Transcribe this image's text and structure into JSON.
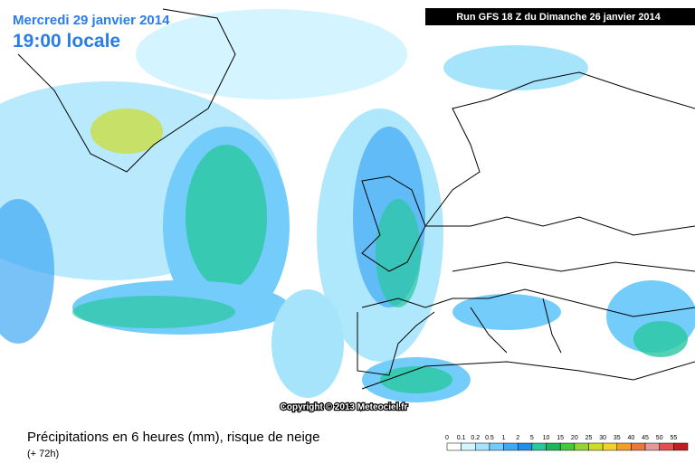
{
  "header": {
    "date": "Mercredi 29 janvier 2014",
    "time": "19:00 locale",
    "run": "Run GFS 18 Z du Dimanche 26 janvier 2014"
  },
  "copyright": "Copyright © 2013 Meteociel.fr",
  "caption": {
    "title": "Précipitations en 6 heures (mm), risque de neige",
    "lead": "(+ 72h)"
  },
  "legend": {
    "items": [
      {
        "label": "0",
        "color": "#ffffff"
      },
      {
        "label": "0.1",
        "color": "#d4f4ff"
      },
      {
        "label": "0.2",
        "color": "#a6e4fc"
      },
      {
        "label": "0.5",
        "color": "#74ccfa"
      },
      {
        "label": "1",
        "color": "#40a8f4"
      },
      {
        "label": "2",
        "color": "#1e90e8"
      },
      {
        "label": "5",
        "color": "#28c8a0"
      },
      {
        "label": "10",
        "color": "#1eb45a"
      },
      {
        "label": "15",
        "color": "#46c83c"
      },
      {
        "label": "20",
        "color": "#96d232"
      },
      {
        "label": "25",
        "color": "#cddc28"
      },
      {
        "label": "30",
        "color": "#f0d228"
      },
      {
        "label": "35",
        "color": "#f0a028"
      },
      {
        "label": "40",
        "color": "#e87840"
      },
      {
        "label": "45",
        "color": "#e29a9a"
      },
      {
        "label": "50",
        "color": "#e05050"
      },
      {
        "label": "55",
        "color": "#c01e1e"
      }
    ]
  }
}
